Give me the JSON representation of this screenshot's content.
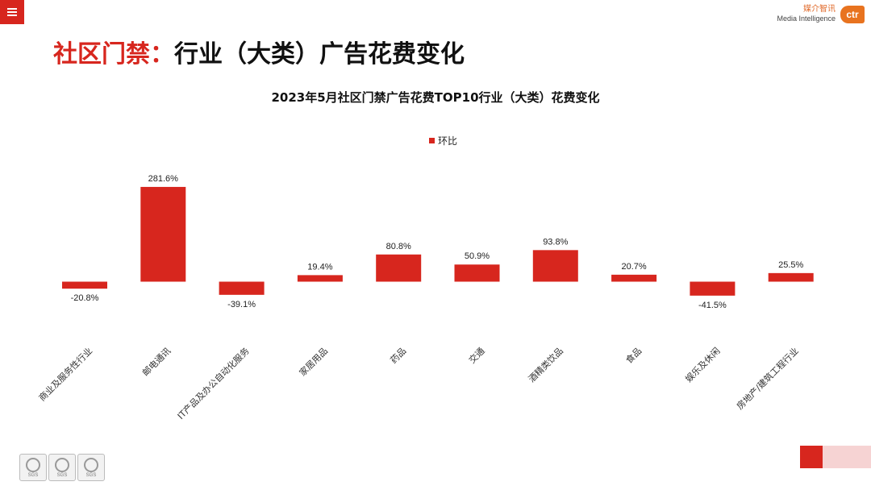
{
  "header": {
    "brand_cn": "媒介智讯",
    "brand_en": "Media Intelligence",
    "logo_text": "ctr"
  },
  "page": {
    "title_accent": "社区门禁：",
    "title_rest": "行业（大类）广告花费变化"
  },
  "footer": {
    "badges": [
      "SGS",
      "SGS",
      "SGS"
    ]
  },
  "colors": {
    "bar": "#d7261e",
    "accent": "#d7261e",
    "logo": "#e8731f"
  },
  "chart_data": {
    "type": "bar",
    "title": "2023年5月社区门禁广告花费TOP10行业（大类）花费变化",
    "categories": [
      "商业及服务性行业",
      "邮电通讯",
      "IT产品及办公自动化服务",
      "家居用品",
      "药品",
      "交通",
      "酒精类饮品",
      "食品",
      "娱乐及休闲",
      "房地产/建筑工程行业"
    ],
    "series": [
      {
        "name": "环比",
        "values": [
          -20.8,
          281.6,
          -39.1,
          19.4,
          80.8,
          50.9,
          93.8,
          20.7,
          -41.5,
          25.5
        ]
      }
    ],
    "data_labels": [
      "-20.8%",
      "281.6%",
      "-39.1%",
      "19.4%",
      "80.8%",
      "50.9%",
      "93.8%",
      "20.7%",
      "-41.5%",
      "25.5%"
    ],
    "xlabel": "",
    "ylabel": "",
    "grid": false,
    "legend": "top-center"
  }
}
